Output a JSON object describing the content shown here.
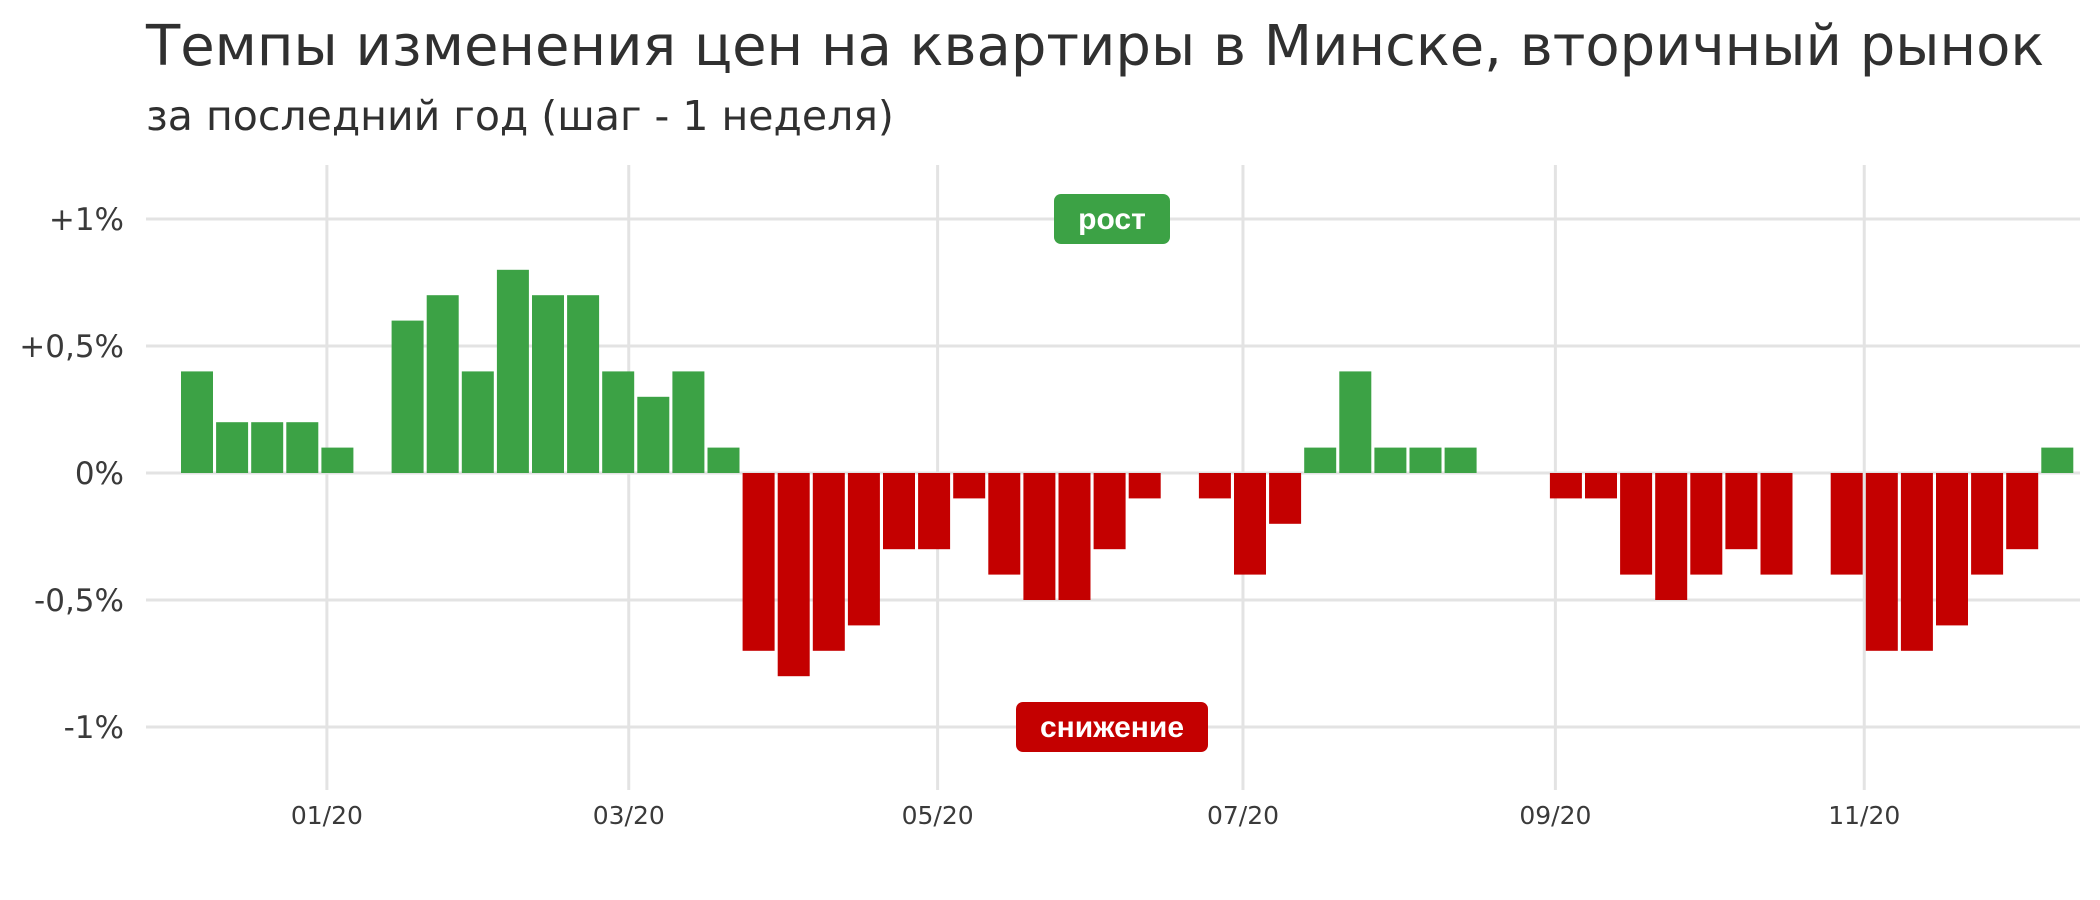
{
  "title": "Темпы изменения цен на квартиры в Минске, вторичный рынок",
  "subtitle": "за последний год (шаг - 1 неделя)",
  "colors": {
    "up": "#3ca245",
    "down": "#c40000",
    "grid": "#e3e3e3",
    "text": "#3a3a3a"
  },
  "chart_data": {
    "type": "bar",
    "title": "Темпы изменения цен на квартиры в Минске, вторичный рынок",
    "subtitle": "за последний год (шаг - 1 неделя)",
    "xlabel": "",
    "ylabel": "",
    "ylim": [
      -1.2,
      1.2
    ],
    "y_ticks": [
      1,
      0.5,
      0,
      -0.5,
      -1
    ],
    "y_tick_labels": [
      "+1%",
      "+0,5%",
      "0%",
      "-0,5%",
      "-1%"
    ],
    "x_tick_labels": [
      "01/20",
      "03/20",
      "05/20",
      "07/20",
      "09/20",
      "11/20"
    ],
    "x_tick_week_index": [
      3.7,
      12.3,
      21.1,
      29.8,
      38.7,
      47.5
    ],
    "grid": true,
    "annotations": [
      {
        "label": "рост",
        "y": 1.0,
        "color": "#3ca245"
      },
      {
        "label": "снижение",
        "y": -1.0,
        "color": "#c40000"
      }
    ],
    "values": [
      0.4,
      0.2,
      0.2,
      0.2,
      0.1,
      0,
      0.6,
      0.7,
      0.4,
      0.8,
      0.7,
      0.7,
      0.4,
      0.3,
      0.4,
      0.1,
      -0.7,
      -0.8,
      -0.7,
      -0.6,
      -0.3,
      -0.3,
      -0.1,
      -0.4,
      -0.5,
      -0.5,
      -0.3,
      -0.1,
      0,
      -0.1,
      -0.4,
      -0.2,
      0.1,
      0.4,
      0.1,
      0.1,
      0.1,
      0,
      0,
      -0.1,
      -0.1,
      -0.4,
      -0.5,
      -0.4,
      -0.3,
      -0.4,
      0,
      -0.4,
      -0.7,
      -0.7,
      -0.6,
      -0.4,
      -0.3,
      0.1
    ]
  }
}
